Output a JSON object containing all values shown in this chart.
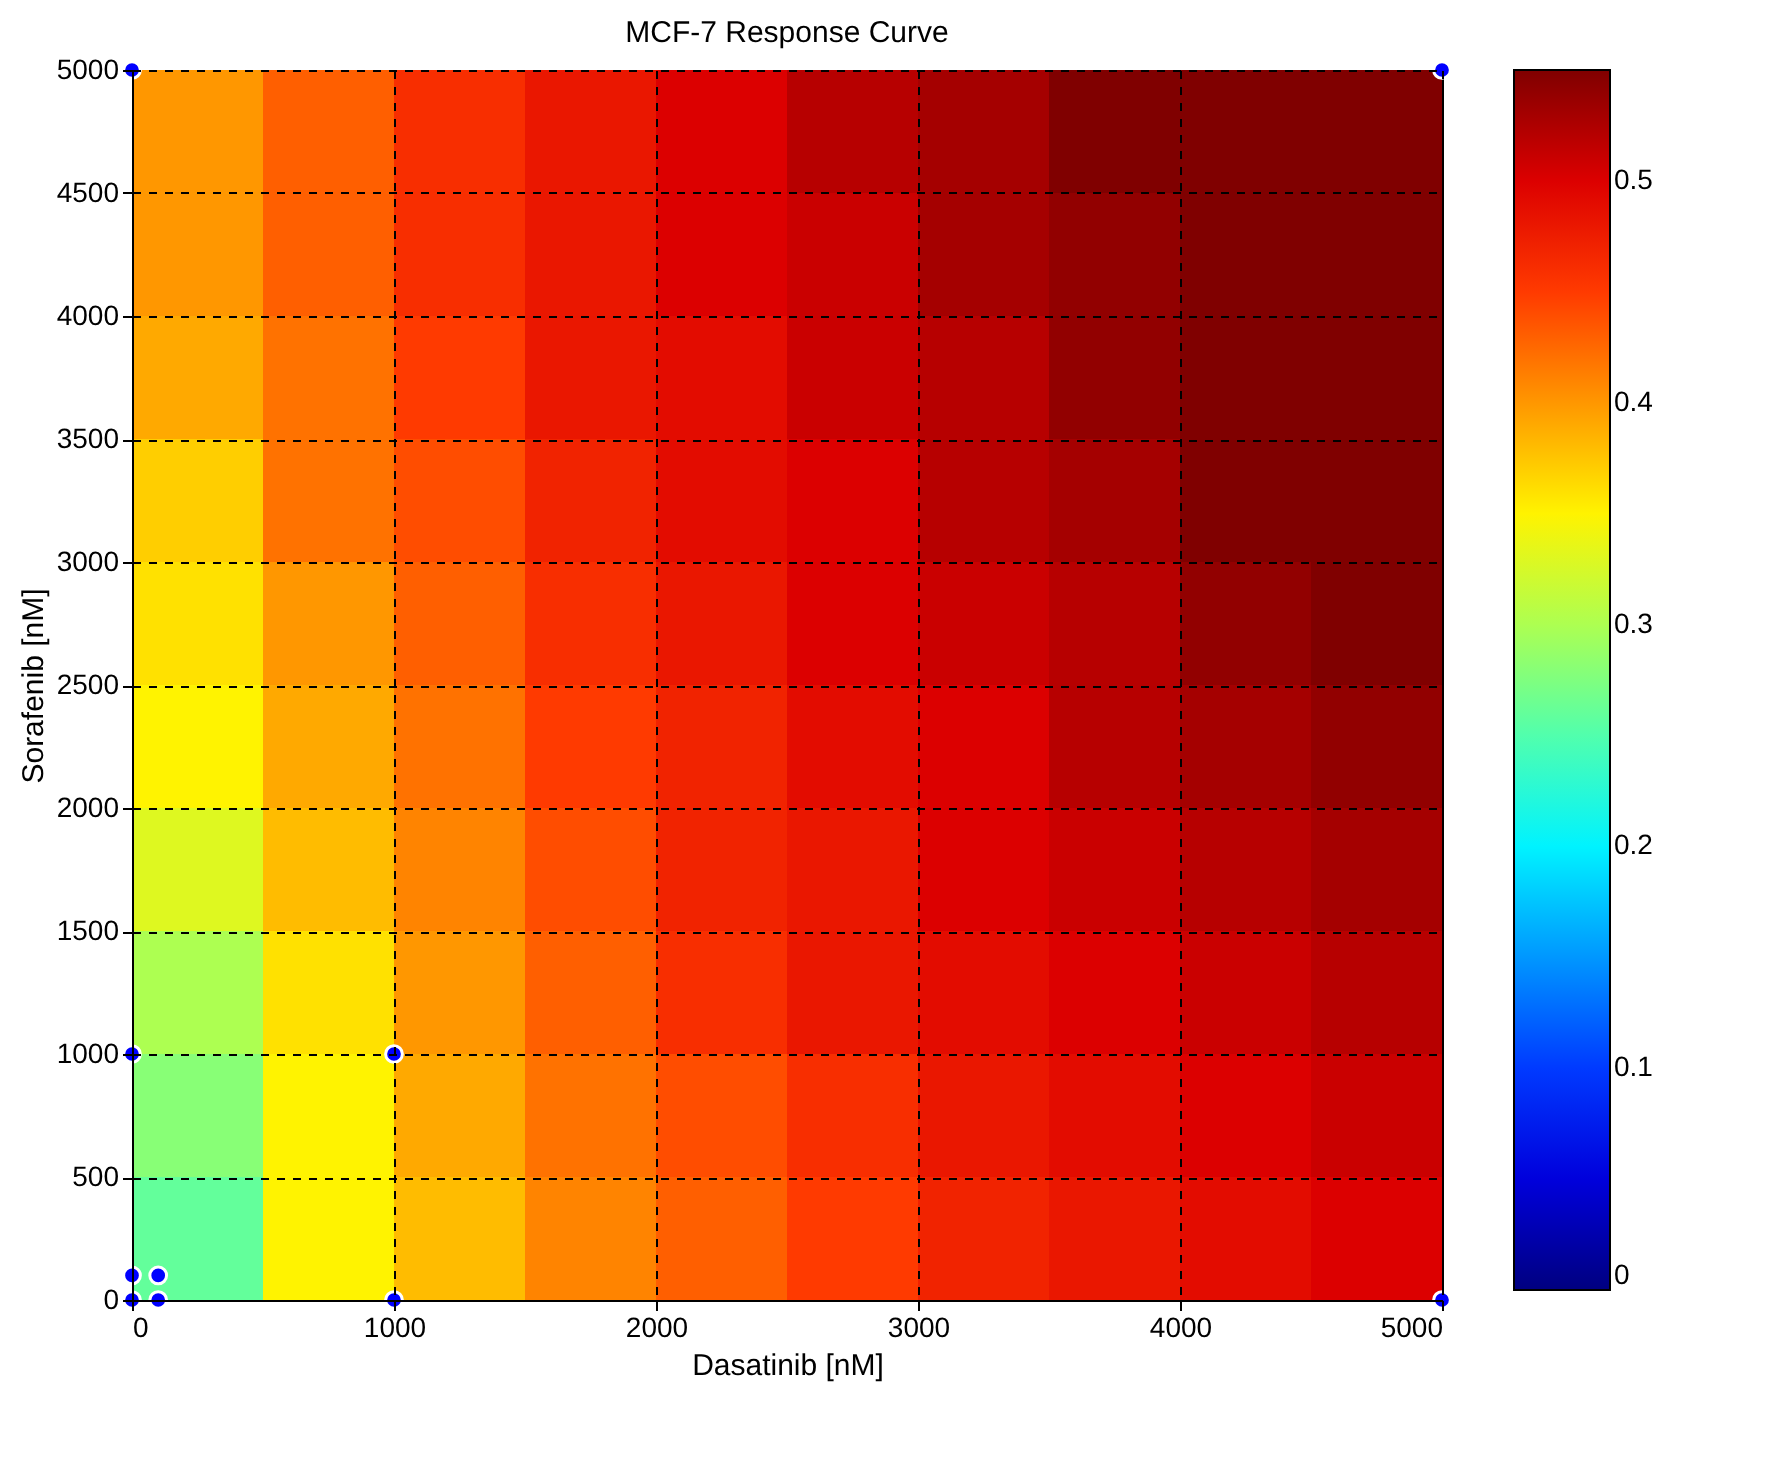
{
  "chart_data": {
    "type": "heatmap",
    "title": "MCF-7 Response Curve",
    "xlabel": "Dasatinib [nM]",
    "ylabel": "Sorafenib [nM]",
    "x": [
      250,
      750,
      1250,
      1750,
      2250,
      2750,
      3250,
      3750,
      4250,
      4750
    ],
    "cells": [
      [
        0.4,
        0.43,
        0.46,
        0.48,
        0.5,
        0.52,
        0.53,
        0.55,
        0.55,
        0.55
      ],
      [
        0.4,
        0.43,
        0.46,
        0.48,
        0.5,
        0.51,
        0.53,
        0.54,
        0.55,
        0.55
      ],
      [
        0.39,
        0.42,
        0.45,
        0.48,
        0.49,
        0.51,
        0.52,
        0.54,
        0.55,
        0.55
      ],
      [
        0.37,
        0.42,
        0.44,
        0.47,
        0.49,
        0.5,
        0.52,
        0.53,
        0.55,
        0.55
      ],
      [
        0.36,
        0.4,
        0.43,
        0.46,
        0.48,
        0.5,
        0.51,
        0.52,
        0.54,
        0.55
      ],
      [
        0.35,
        0.39,
        0.42,
        0.45,
        0.47,
        0.49,
        0.5,
        0.52,
        0.53,
        0.54
      ],
      [
        0.33,
        0.38,
        0.41,
        0.44,
        0.47,
        0.48,
        0.5,
        0.51,
        0.52,
        0.53
      ],
      [
        0.3,
        0.36,
        0.4,
        0.43,
        0.46,
        0.48,
        0.49,
        0.5,
        0.51,
        0.52
      ],
      [
        0.28,
        0.35,
        0.39,
        0.42,
        0.44,
        0.46,
        0.48,
        0.49,
        0.5,
        0.51
      ],
      [
        0.26,
        0.35,
        0.38,
        0.41,
        0.43,
        0.45,
        0.47,
        0.48,
        0.49,
        0.5
      ]
    ],
    "xlim": [
      0,
      5000
    ],
    "xticks": [
      0,
      1000,
      2000,
      3000,
      4000,
      5000
    ],
    "ylim": [
      0,
      5000
    ],
    "yticks": [
      0,
      500,
      1000,
      1500,
      2000,
      2500,
      3000,
      3500,
      4000,
      4500,
      5000
    ],
    "clim": [
      0,
      0.55
    ],
    "cticks": [
      0,
      0.1,
      0.2,
      0.3,
      0.4,
      0.5
    ],
    "grid": true,
    "marker": "circle",
    "series": [
      {
        "type": "scatter",
        "color": "#0000ff",
        "x": [
          0,
          0,
          100,
          100,
          0,
          1000,
          1000,
          5000,
          0,
          5000
        ],
        "values": [
          0,
          100,
          0,
          100,
          1000,
          1000,
          0,
          0,
          5000,
          5000
        ]
      }
    ]
  }
}
